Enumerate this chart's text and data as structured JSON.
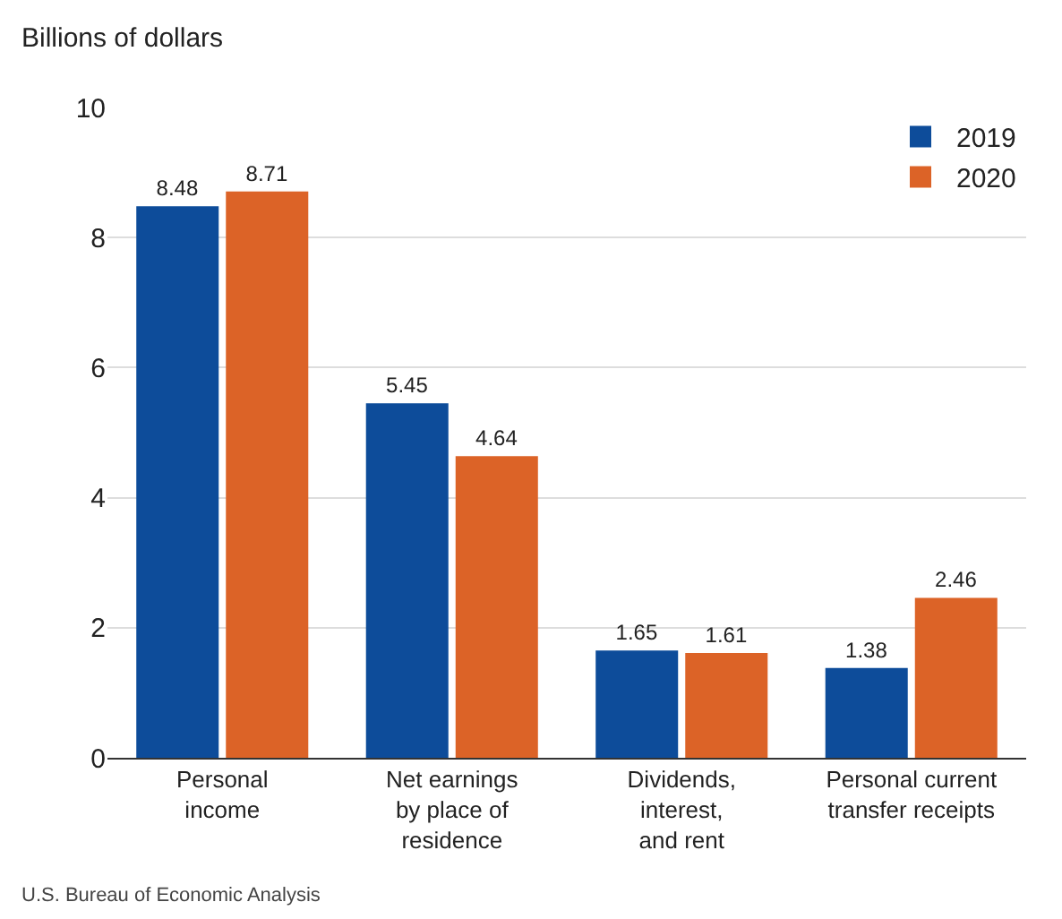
{
  "chart_data": {
    "type": "bar",
    "ylabel": "Billions of dollars",
    "categories": [
      "Personal\nincome",
      "Net earnings\nby place of\nresidence",
      "Dividends,\ninterest,\nand rent",
      "Personal current\ntransfer receipts"
    ],
    "series": [
      {
        "name": "2019",
        "color": "#0d4c9a",
        "values": [
          8.48,
          5.45,
          1.65,
          1.38
        ]
      },
      {
        "name": "2020",
        "color": "#dc6327",
        "values": [
          8.71,
          4.64,
          1.61,
          2.46
        ]
      }
    ],
    "ylim": [
      0,
      10
    ],
    "yticks": [
      0,
      2,
      4,
      6,
      8,
      10
    ],
    "grid": "y",
    "legend": "top right",
    "data_labels": true,
    "annotations": [
      "U.S. Bureau of Economic Analysis"
    ]
  }
}
